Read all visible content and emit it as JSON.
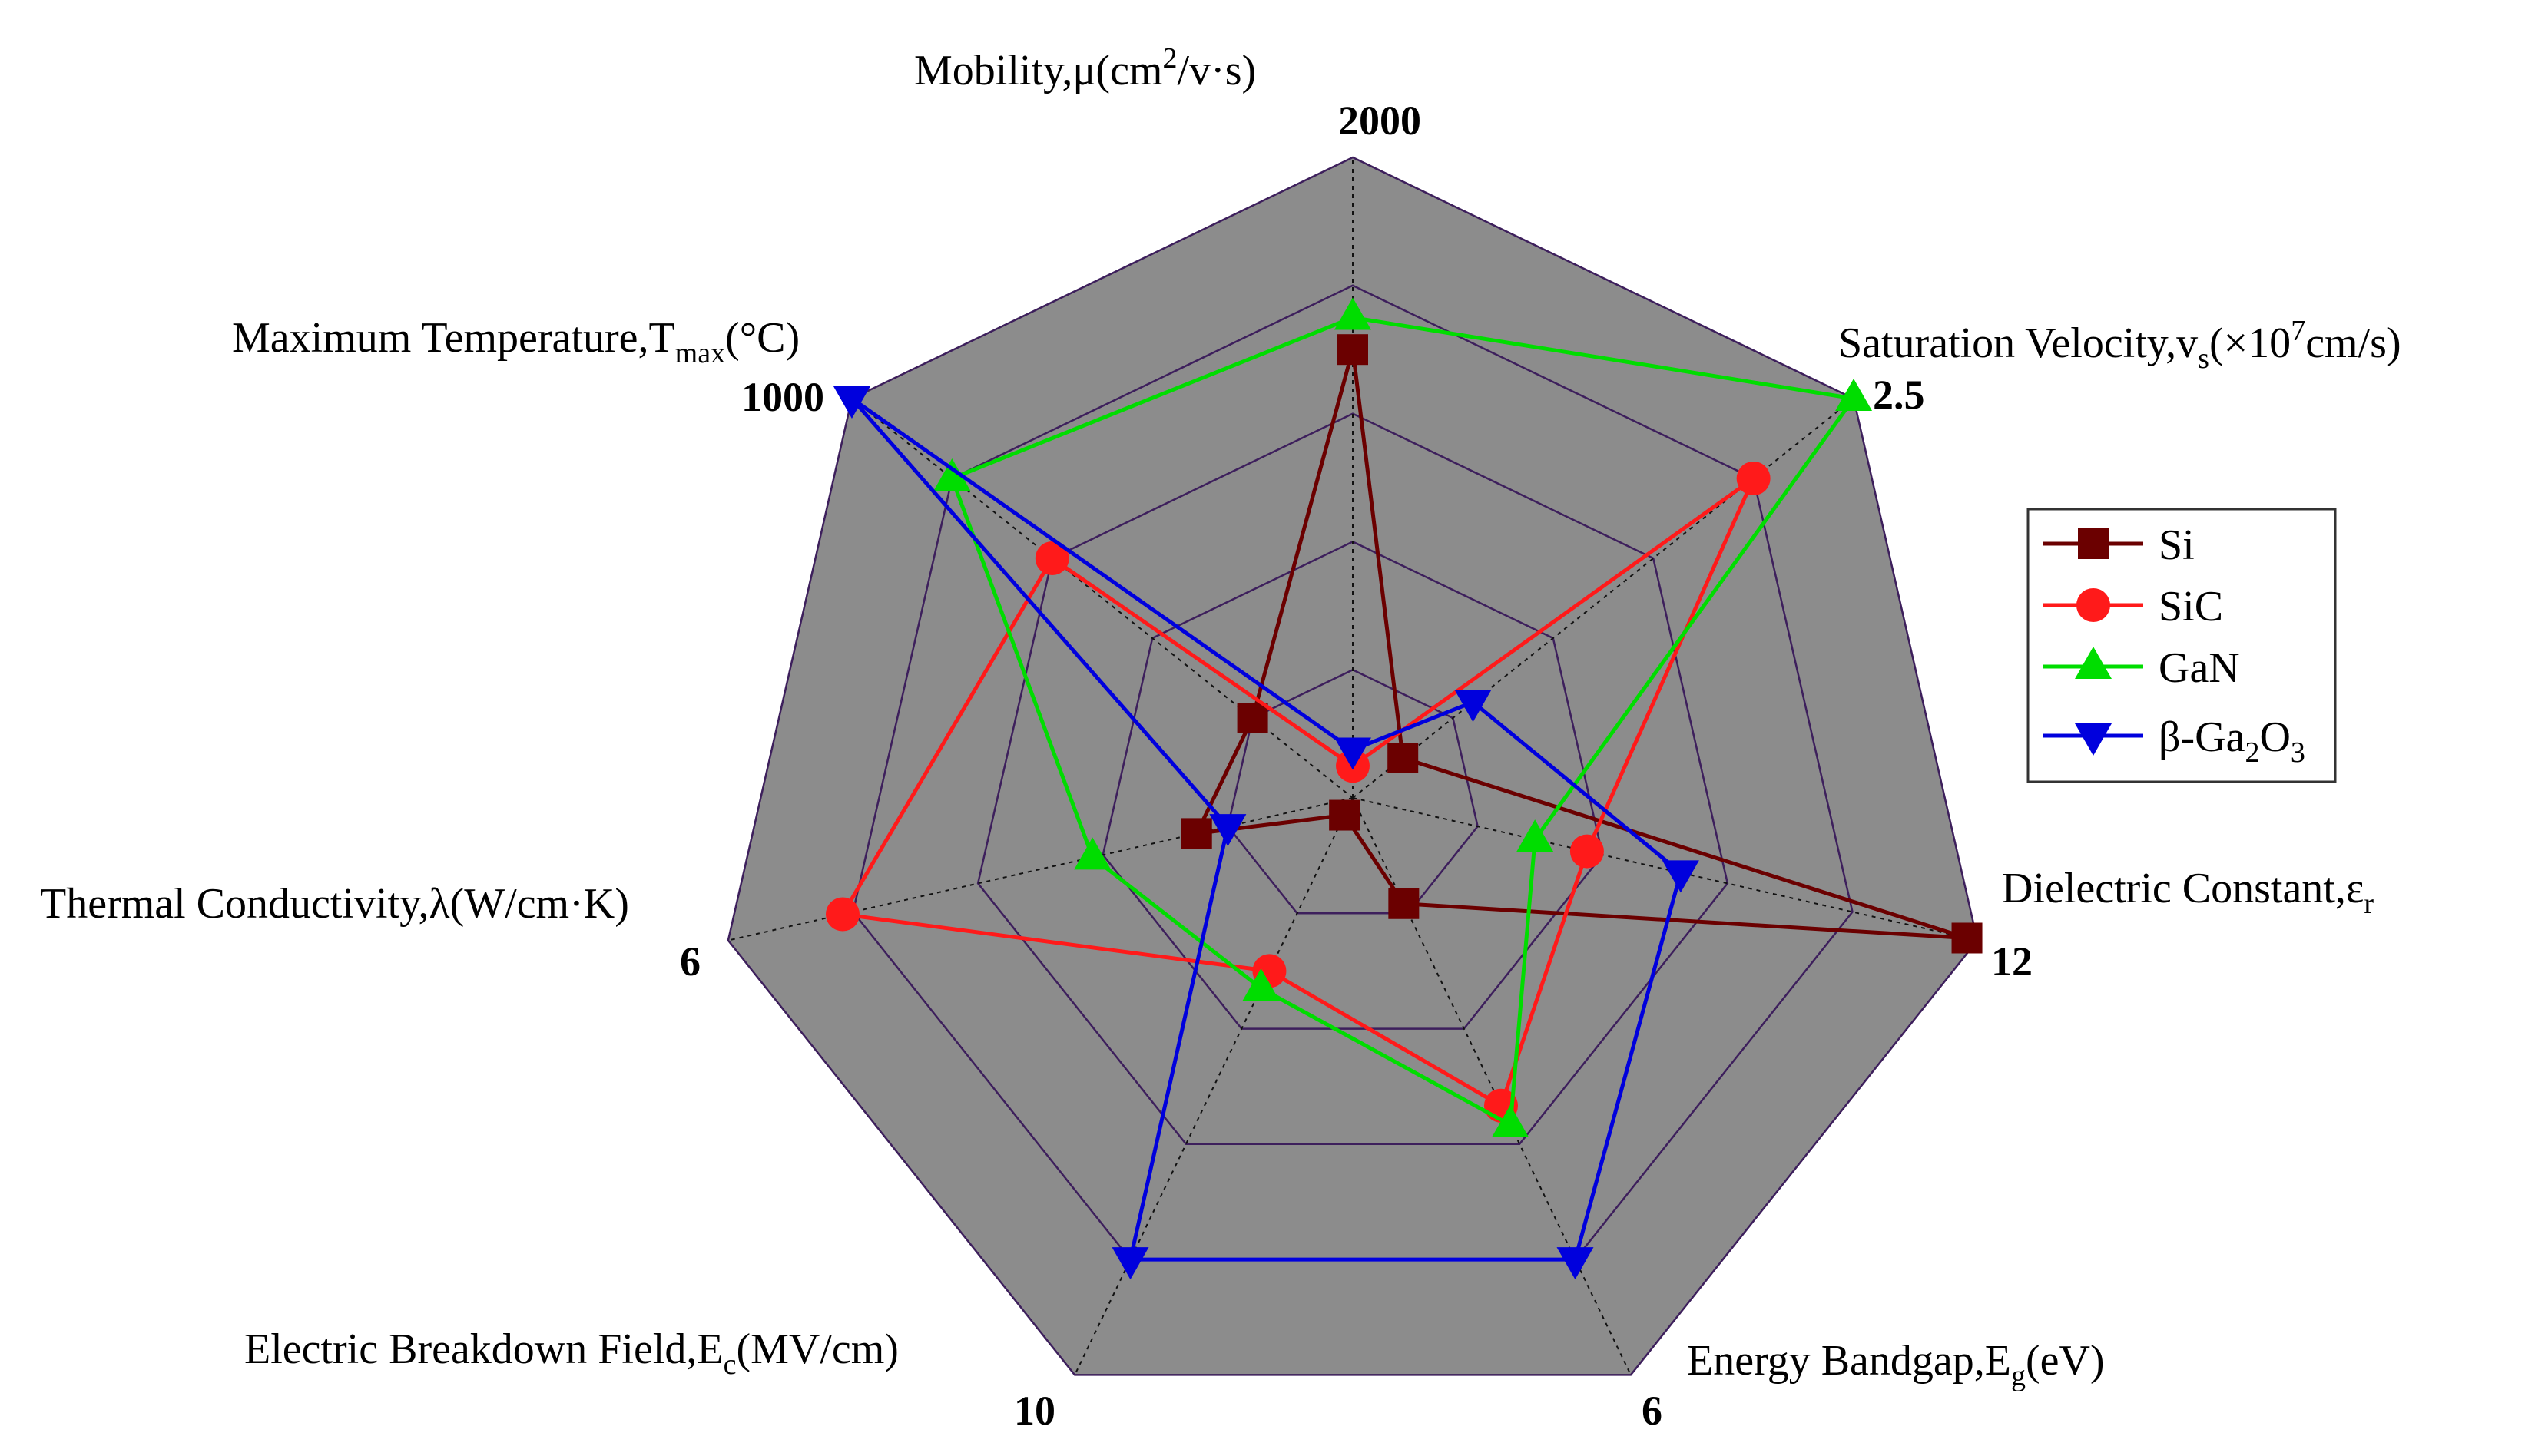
{
  "chart_data": {
    "type": "radar",
    "axes": [
      {
        "key": "mobility",
        "label_pre": "Mobility,μ(cm",
        "label_sup": "2",
        "label_post": "/v·s)",
        "max_label": "2000",
        "max": 2000
      },
      {
        "key": "saturation_velocity",
        "label_pre": "Saturation Velocity,v",
        "label_sub": "s",
        "label_mid": "(×10",
        "label_sup": "7",
        "label_post": "cm/s)",
        "max_label": "2.5",
        "max": 2.5
      },
      {
        "key": "dielectric_constant",
        "label_pre": "Dielectric Constant,ε",
        "label_sub": "r",
        "max_label": "12",
        "max": 12
      },
      {
        "key": "energy_bandgap",
        "label_pre": "Energy Bandgap,E",
        "label_sub": "g",
        "label_post": "(eV)",
        "max_label": "6",
        "max": 6
      },
      {
        "key": "breakdown_field",
        "label_pre": "Electric Breakdown Field,E",
        "label_sub": "c",
        "label_post": "(MV/cm)",
        "max_label": "10",
        "max": 10
      },
      {
        "key": "thermal_conductivity",
        "label_pre": "Thermal Conductivity,λ(W/cm·K)",
        "max_label": "6",
        "max": 6
      },
      {
        "key": "max_temperature",
        "label_pre": "Maximum Temperature,T",
        "label_sub": "max",
        "label_post": "(°C)",
        "max_label": "1000",
        "max": 1000
      }
    ],
    "rings": 5,
    "series": [
      {
        "name": "Si",
        "color": "#6b0000",
        "marker": "square",
        "values": [
          1400,
          0.25,
          11.8,
          1.1,
          0.3,
          1.5,
          200
        ]
      },
      {
        "name": "SiC",
        "color": "#ff1a1a",
        "marker": "circle",
        "values": [
          100,
          2.0,
          4.5,
          3.2,
          3.0,
          4.9,
          600
        ]
      },
      {
        "name": "GaN",
        "color": "#00dd00",
        "marker": "triangle-up",
        "values": [
          1500,
          2.5,
          3.5,
          3.4,
          3.3,
          2.5,
          800
        ]
      },
      {
        "name": "β-Ga2O3",
        "color": "#0000dd",
        "marker": "triangle-down",
        "values": [
          150,
          0.6,
          6.3,
          4.8,
          8.0,
          1.2,
          1000
        ]
      }
    ],
    "legend": {
      "position": "right",
      "entries": [
        {
          "pre": "Si"
        },
        {
          "pre": "SiC"
        },
        {
          "pre": "GaN"
        },
        {
          "pre": "β-Ga",
          "sub": "2",
          "mid": "O",
          "sub2": "3"
        }
      ]
    },
    "colors": {
      "background_polygon": "#8c8c8c",
      "grid_ring": "#3d1f5c",
      "spoke": "#111111",
      "legend_border": "#333333"
    }
  }
}
